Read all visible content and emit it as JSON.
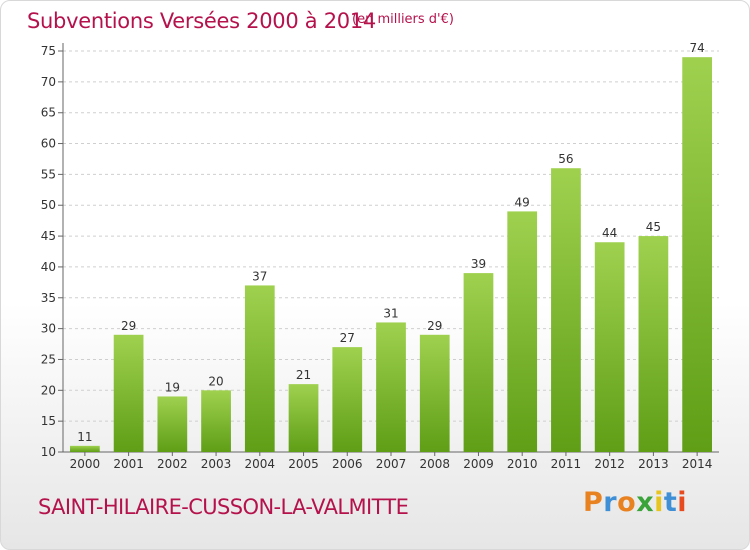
{
  "colors": {
    "title": "#b5124c",
    "bar_light": "#9fd14f",
    "bar_dark": "#5f9e16",
    "axis_text": "#333333",
    "grid": "#cfcfcf",
    "logo": [
      "#e8811f",
      "#3e8fd6",
      "#e8811f",
      "#3aa33a",
      "#e8c41f",
      "#3e8fd6",
      "#e84a1f"
    ]
  },
  "header": {
    "title": "Subventions Versées 2000 à 2014",
    "subtitle": "(en milliers d'€)"
  },
  "footer": {
    "city": "SAINT-HILAIRE-CUSSON-LA-VALMITTE",
    "logo_letters": [
      "P",
      "r",
      "o",
      "x",
      "i",
      "t",
      "i"
    ]
  },
  "chart_data": {
    "type": "bar",
    "categories": [
      "2000",
      "2001",
      "2002",
      "2003",
      "2004",
      "2005",
      "2006",
      "2007",
      "2008",
      "2009",
      "2010",
      "2011",
      "2012",
      "2013",
      "2014"
    ],
    "values": [
      11,
      29,
      19,
      20,
      37,
      21,
      27,
      31,
      29,
      39,
      49,
      56,
      44,
      45,
      74
    ],
    "data_labels": [
      "11",
      "29",
      "19",
      "20",
      "37",
      "21",
      "27",
      "31",
      "29",
      "39",
      "49",
      "56",
      "44",
      "45",
      "74"
    ],
    "ylim": [
      10,
      75
    ],
    "yticks": [
      "10",
      "15",
      "20",
      "25",
      "30",
      "35",
      "40",
      "45",
      "50",
      "55",
      "60",
      "65",
      "70",
      "75"
    ],
    "grid": true,
    "title": "Subventions Versées 2000 à 2014",
    "xlabel": "",
    "ylabel": ""
  }
}
